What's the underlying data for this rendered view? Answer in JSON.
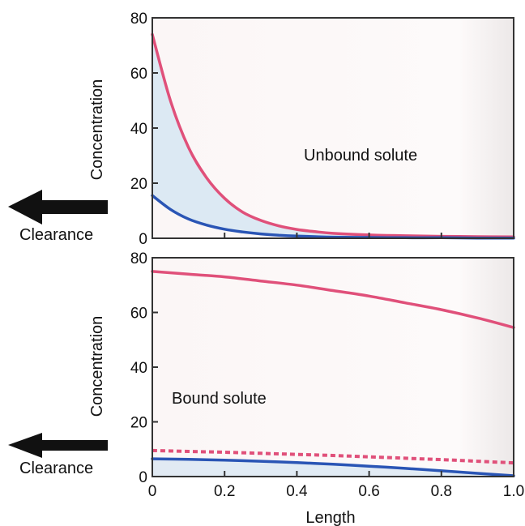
{
  "colors": {
    "plot_bg": "#fcf8f8",
    "frame": "#333333",
    "upper_curve": "#e0507a",
    "lower_curve": "#2a55b5",
    "fill_between": "#d6e6f2",
    "arrow": "#111111"
  },
  "chart_data": [
    {
      "type": "line",
      "title": "",
      "xlabel": "",
      "ylabel": "Concentration",
      "xlim": [
        0,
        1.0
      ],
      "ylim": [
        0,
        80
      ],
      "xticks": [
        0,
        0.2,
        0.4,
        0.6,
        0.8,
        1.0
      ],
      "yticks": [
        0,
        20,
        40,
        60,
        80
      ],
      "ytick_labels": [
        "0",
        "20",
        "40",
        "60",
        "80"
      ],
      "xtick_labels_shown": false,
      "annotation": "Unbound solute",
      "arrow_label": "Clearance",
      "grid": false,
      "shaded_between_series": true,
      "x": [
        0,
        0.05,
        0.1,
        0.15,
        0.2,
        0.25,
        0.3,
        0.35,
        0.4,
        0.45,
        0.5,
        0.6,
        0.7,
        0.8,
        0.9,
        1.0
      ],
      "series": [
        {
          "color": "#e0507a",
          "style": "solid",
          "values": [
            74,
            50,
            33,
            22,
            14.5,
            9.5,
            6.5,
            4.5,
            3.2,
            2.4,
            1.8,
            1.2,
            0.9,
            0.7,
            0.6,
            0.5
          ]
        },
        {
          "color": "#2a55b5",
          "style": "solid",
          "values": [
            15.5,
            10.5,
            7,
            4.8,
            3.3,
            2.3,
            1.6,
            1.1,
            0.8,
            0.6,
            0.4,
            0.3,
            0.2,
            0.2,
            0.1,
            0.1
          ]
        }
      ]
    },
    {
      "type": "line",
      "title": "",
      "xlabel": "Length",
      "ylabel": "Concentration",
      "xlim": [
        0,
        1.0
      ],
      "ylim": [
        0,
        80
      ],
      "xticks": [
        0,
        0.2,
        0.4,
        0.6,
        0.8,
        1.0
      ],
      "xtick_labels": [
        "0",
        "0.2",
        "0.4",
        "0.6",
        "0.8",
        "1.0"
      ],
      "yticks": [
        0,
        20,
        40,
        60,
        80
      ],
      "ytick_labels": [
        "0",
        "20",
        "40",
        "60",
        "80"
      ],
      "annotation": "Bound solute",
      "arrow_label": "Clearance",
      "grid": false,
      "shaded_between_series": true,
      "x": [
        0,
        0.1,
        0.2,
        0.3,
        0.4,
        0.5,
        0.6,
        0.7,
        0.8,
        0.9,
        1.0
      ],
      "series": [
        {
          "color": "#e0507a",
          "style": "solid",
          "values": [
            75,
            74,
            73,
            71.5,
            70,
            68,
            66,
            63.5,
            61,
            58,
            54.5
          ]
        },
        {
          "color": "#e0507a",
          "style": "dashed",
          "values": [
            9.5,
            9.2,
            8.9,
            8.5,
            8.1,
            7.7,
            7.2,
            6.7,
            6.2,
            5.6,
            5
          ]
        },
        {
          "color": "#2a55b5",
          "style": "solid",
          "values": [
            6.5,
            6.3,
            6,
            5.6,
            5.1,
            4.5,
            3.8,
            3,
            2.1,
            1.2,
            0.3
          ]
        }
      ]
    }
  ]
}
